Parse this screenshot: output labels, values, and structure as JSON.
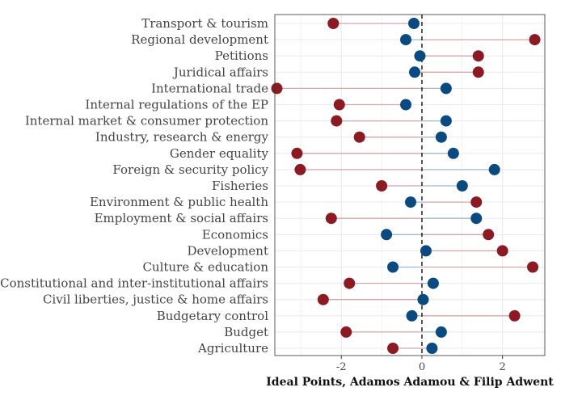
{
  "chart_data": {
    "type": "dumbbell",
    "xlabel": "Ideal Points, Adamos Adamou & Filip Adwent",
    "ylabel": "",
    "xlim": [
      -3.65,
      3.05
    ],
    "xticks": [
      -2,
      0,
      2
    ],
    "xtick_labels": [
      "-2",
      "0",
      "2"
    ],
    "reference_line": {
      "x": 0,
      "style": "dashed"
    },
    "grid": true,
    "colors": {
      "red": "#8c1a22",
      "blue": "#0b4a80",
      "segment_red": "#d7a5aa",
      "segment_blue": "#9fbad4",
      "grid": "#ebebeb",
      "panel_border": "#333333"
    },
    "categories": [
      "Transport & tourism",
      "Regional development",
      "Petitions",
      "Juridical affairs",
      "International trade",
      "Internal regulations of the EP",
      "Internal market & consumer protection",
      "Industry, research & energy",
      "Gender equality",
      "Foreign & security policy",
      "Fisheries",
      "Environment & public health",
      "Employment & social affairs",
      "Economics",
      "Development",
      "Culture & education",
      "Constitutional and inter-institutional affairs",
      "Civil liberties, justice & home affairs",
      "Budgetary control",
      "Budget",
      "Agriculture"
    ],
    "series": [
      {
        "color": "red",
        "values": [
          -2.2,
          2.8,
          1.4,
          1.4,
          -3.6,
          -2.05,
          -2.12,
          -1.55,
          -3.1,
          -3.02,
          -1.0,
          1.35,
          -2.25,
          1.65,
          2.0,
          2.75,
          -1.8,
          -2.45,
          2.3,
          -1.88,
          -0.72
        ]
      },
      {
        "color": "blue",
        "values": [
          -0.2,
          -0.4,
          -0.05,
          -0.18,
          0.6,
          -0.4,
          0.6,
          0.48,
          0.78,
          1.8,
          1.0,
          -0.28,
          1.35,
          -0.88,
          0.1,
          -0.72,
          0.28,
          0.03,
          -0.25,
          0.48,
          0.25
        ]
      }
    ]
  }
}
